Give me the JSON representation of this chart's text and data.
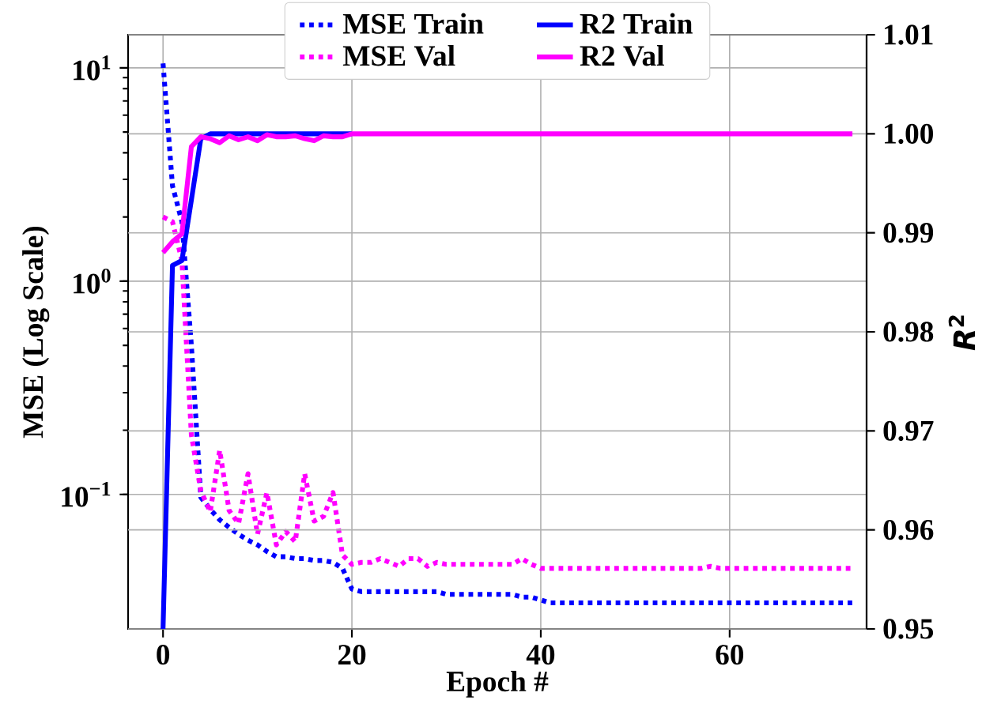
{
  "chart_data": {
    "type": "line",
    "x": [
      0,
      1,
      2,
      3,
      4,
      5,
      6,
      7,
      8,
      9,
      10,
      11,
      12,
      13,
      14,
      15,
      16,
      17,
      18,
      19,
      20,
      21,
      22,
      23,
      24,
      25,
      26,
      27,
      28,
      29,
      30,
      31,
      32,
      33,
      34,
      35,
      36,
      37,
      38,
      39,
      40,
      41,
      42,
      43,
      44,
      45,
      46,
      47,
      48,
      49,
      50,
      51,
      52,
      53,
      54,
      55,
      56,
      57,
      58,
      59,
      60,
      61,
      62,
      63,
      64,
      65,
      66,
      67,
      68,
      69,
      70,
      71,
      72,
      73
    ],
    "xlabel": "Epoch #",
    "ylabel": "MSE (Log Scale)",
    "y2label": "*R*$^{2}$",
    "xlim": [
      -3.7,
      74.5
    ],
    "xticks": [
      0,
      20,
      40,
      60
    ],
    "ylim": [
      0.0234,
      14.3
    ],
    "yticks": [
      {
        "value": 0.1,
        "label": "10$^{−1}$"
      },
      {
        "value": 1,
        "label": "10$^{0}$"
      },
      {
        "value": 10,
        "label": "10$^{1}$"
      }
    ],
    "y2lim": [
      0.95,
      1.01
    ],
    "y2ticks": [
      0.95,
      0.96,
      0.97,
      0.98,
      0.99,
      {
        "value": 1,
        "label": "1.00"
      },
      1.01
    ],
    "log": "y",
    "grid": true,
    "legend": "top",
    "series": [
      {
        "name": "MSE Train",
        "color": "#0000ff",
        "line_style": "dotted",
        "values": [
          10.5,
          2.8,
          1.9,
          0.5,
          0.097,
          0.085,
          0.076,
          0.07,
          0.065,
          0.061,
          0.058,
          0.054,
          0.051,
          0.051,
          0.05,
          0.05,
          0.049,
          0.049,
          0.048,
          0.045,
          0.036,
          0.035,
          0.035,
          0.035,
          0.035,
          0.035,
          0.035,
          0.035,
          0.035,
          0.035,
          0.034,
          0.034,
          0.034,
          0.034,
          0.034,
          0.034,
          0.034,
          0.034,
          0.033,
          0.033,
          0.032,
          0.031,
          0.031,
          0.031,
          0.031,
          0.031,
          0.031,
          0.031,
          0.031,
          0.031,
          0.031,
          0.031,
          0.031,
          0.031,
          0.031,
          0.031,
          0.031,
          0.031,
          0.031,
          0.031,
          0.031,
          0.031,
          0.031,
          0.031,
          0.031,
          0.031,
          0.031,
          0.031,
          0.031,
          0.031,
          0.031,
          0.031,
          0.031,
          0.031
        ]
      },
      {
        "name": "MSE Val",
        "color": "#ff00ff",
        "line_style": "dotted",
        "values": [
          2.0,
          1.9,
          1.25,
          0.19,
          0.104,
          0.083,
          0.161,
          0.084,
          0.073,
          0.125,
          0.065,
          0.102,
          0.058,
          0.067,
          0.06,
          0.125,
          0.075,
          0.079,
          0.102,
          0.052,
          0.047,
          0.048,
          0.048,
          0.05,
          0.048,
          0.046,
          0.05,
          0.05,
          0.046,
          0.048,
          0.047,
          0.047,
          0.047,
          0.047,
          0.047,
          0.047,
          0.047,
          0.047,
          0.05,
          0.047,
          0.045,
          0.045,
          0.045,
          0.045,
          0.045,
          0.045,
          0.045,
          0.045,
          0.045,
          0.045,
          0.045,
          0.045,
          0.045,
          0.045,
          0.045,
          0.045,
          0.045,
          0.045,
          0.046,
          0.045,
          0.045,
          0.045,
          0.045,
          0.045,
          0.045,
          0.045,
          0.045,
          0.045,
          0.045,
          0.045,
          0.045,
          0.045,
          0.045,
          0.045
        ]
      },
      {
        "name": "R2 Train",
        "color": "#0000ff",
        "line_style": "solid",
        "axis": "y2",
        "values": [
          0.95,
          0.9867,
          0.9872,
          0.9933,
          0.9995,
          1.0,
          1.0,
          1.0,
          1.0,
          1.0,
          1.0,
          1.0,
          1.0,
          1.0,
          1.0,
          1.0,
          1.0,
          1.0,
          1.0,
          1.0,
          1.0,
          null,
          null,
          null,
          null,
          null,
          null,
          null,
          null,
          null,
          null,
          null,
          null,
          null,
          null,
          null,
          null,
          null,
          null,
          null,
          null,
          null,
          null,
          null,
          null,
          null,
          null,
          null,
          null,
          null,
          null,
          null,
          null,
          null,
          null,
          null,
          null,
          null,
          null,
          null,
          null,
          null,
          null,
          null,
          null,
          null,
          null,
          null,
          null,
          null,
          null,
          null,
          null,
          null
        ]
      },
      {
        "name": "R2 Val",
        "color": "#ff00ff",
        "line_style": "solid",
        "axis": "y2",
        "values": [
          0.988,
          0.9891,
          0.9899,
          0.9987,
          0.9997,
          0.9995,
          0.9991,
          0.9998,
          0.9994,
          0.9997,
          0.9993,
          0.9999,
          0.9997,
          0.9997,
          0.9998,
          0.9995,
          0.9993,
          0.9998,
          0.9997,
          0.9997,
          1.0,
          1.0,
          1.0,
          1.0,
          1.0,
          1.0,
          1.0,
          1.0,
          1.0,
          1.0,
          1.0,
          1.0,
          1.0,
          1.0,
          1.0,
          1.0,
          1.0,
          1.0,
          1.0,
          1.0,
          1.0,
          1.0,
          1.0,
          1.0,
          1.0,
          1.0,
          1.0,
          1.0,
          1.0,
          1.0,
          1.0,
          1.0,
          1.0,
          1.0,
          1.0,
          1.0,
          1.0,
          1.0,
          1.0,
          1.0,
          1.0,
          1.0,
          1.0,
          1.0,
          1.0,
          1.0,
          1.0,
          1.0,
          1.0,
          1.0,
          1.0,
          1.0,
          1.0,
          1.0
        ]
      }
    ]
  }
}
